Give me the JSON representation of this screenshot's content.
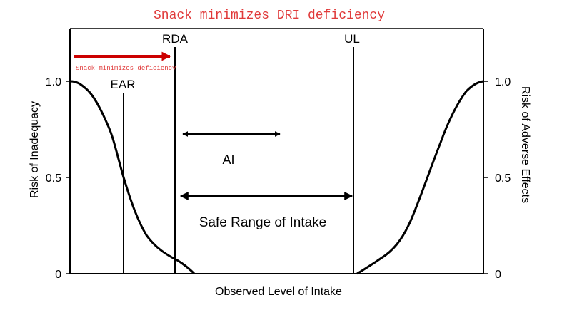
{
  "caption": "Snack minimizes DRI deficiency",
  "annotation": "Snack minimizes deficiency",
  "markers": {
    "rda": "RDA",
    "ul": "UL",
    "ear": "EAR",
    "ai": "AI"
  },
  "safe_range": "Safe Range of Intake",
  "axes": {
    "x_label": "Observed Level of Intake",
    "left_label": "Risk of Inadequacy",
    "right_label": "Risk of Adverse Effects",
    "left_ticks": [
      "1.0",
      "0.5",
      "0"
    ],
    "right_ticks": [
      "1.0",
      "0.5",
      "0"
    ]
  },
  "colors": {
    "annotation": "#e03a3a",
    "arrow": "#cc0000",
    "lines": "#000000"
  }
}
